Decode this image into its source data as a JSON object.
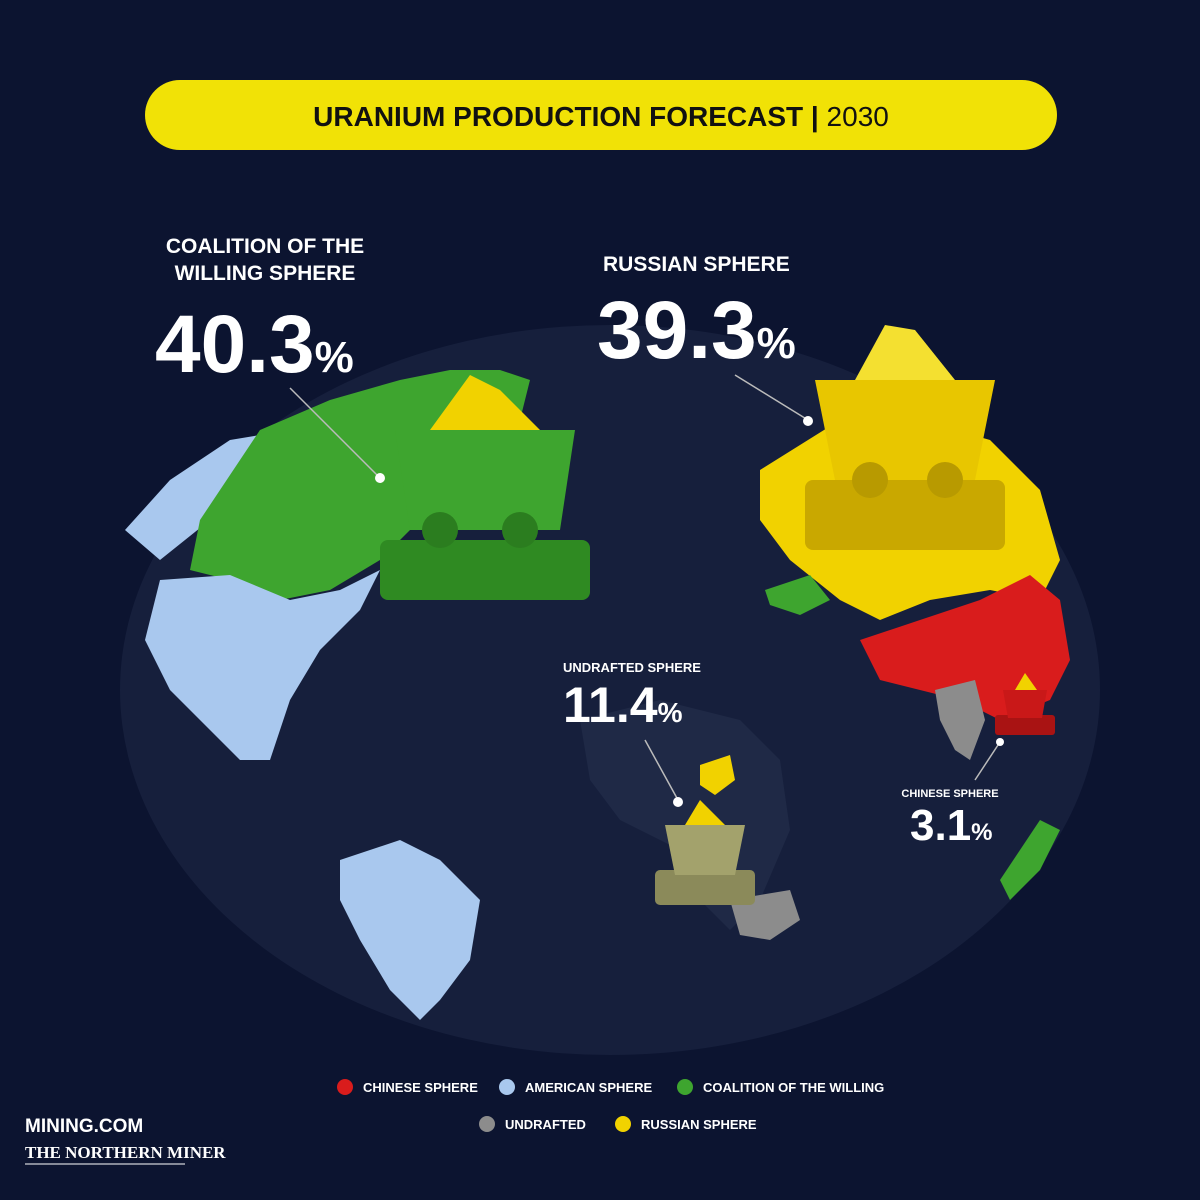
{
  "header": {
    "title": "URANIUM PRODUCTION FORECAST |",
    "year": "2030"
  },
  "callouts": [
    {
      "label_lines": [
        "COALITION OF THE",
        "WILLING SPHERE"
      ],
      "value": 40.3,
      "unit": "%"
    },
    {
      "label_lines": [
        "RUSSIAN SPHERE"
      ],
      "value": 39.3,
      "unit": "%"
    },
    {
      "label_lines": [
        "UNDRAFTED SPHERE"
      ],
      "value": 11.4,
      "unit": "%"
    },
    {
      "label_lines": [
        "CHINESE SPHERE"
      ],
      "value": 3.1,
      "unit": "%"
    }
  ],
  "legend": [
    {
      "name": "CHINESE SPHERE",
      "color": "#d91c1c"
    },
    {
      "name": "AMERICAN SPHERE",
      "color": "#a9c8ee"
    },
    {
      "name": "COALITION OF THE WILLING",
      "color": "#3ea52f"
    },
    {
      "name": "UNDRAFTED",
      "color": "#8c8c8c"
    },
    {
      "name": "RUSSIAN SPHERE",
      "color": "#f1d200"
    }
  ],
  "logos": {
    "primary": "MINING.COM",
    "secondary": "THE NORTHERN MINER"
  }
}
